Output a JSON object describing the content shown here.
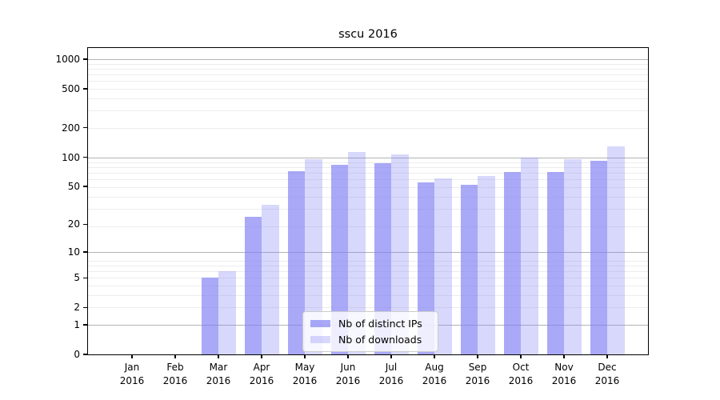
{
  "title": "sscu 2016",
  "chart_data": {
    "type": "bar",
    "title": "sscu 2016",
    "y_scale": "log10(1+x)",
    "grid": true,
    "legend_position": "lower center",
    "year": "2016",
    "months": [
      "Jan",
      "Feb",
      "Mar",
      "Apr",
      "May",
      "Jun",
      "Jul",
      "Aug",
      "Sep",
      "Oct",
      "Nov",
      "Dec"
    ],
    "categories": [
      "Jan 2016",
      "Feb 2016",
      "Mar 2016",
      "Apr 2016",
      "May 2016",
      "Jun 2016",
      "Jul 2016",
      "Aug 2016",
      "Sep 2016",
      "Oct 2016",
      "Nov 2016",
      "Dec 2016"
    ],
    "series": [
      {
        "name": "Nb of distinct IPs",
        "slug": "distinct-ips",
        "color": "rgba(125,125,245,0.66)",
        "approx_hex": "#a9a9f7",
        "values": [
          0,
          0,
          5,
          24,
          72,
          84,
          86,
          55,
          52,
          71,
          71,
          92
        ]
      },
      {
        "name": "Nb of downloads",
        "slug": "downloads",
        "color": "rgba(125,125,245,0.30)",
        "approx_hex": "#d8d8fa",
        "values": [
          0,
          0,
          6,
          32,
          95,
          114,
          107,
          61,
          64,
          99,
          95,
          128
        ]
      }
    ],
    "y_ticks": [
      0,
      1,
      2,
      5,
      10,
      20,
      50,
      100,
      200,
      500,
      1000
    ],
    "major_gridlines": [
      1,
      10,
      100,
      1000
    ],
    "ylim": [
      0,
      1300
    ]
  },
  "colors": {
    "major_grid": "#b3b3b3",
    "minor_grid": "#ececec",
    "axis": "#000000",
    "background": "#ffffff"
  }
}
